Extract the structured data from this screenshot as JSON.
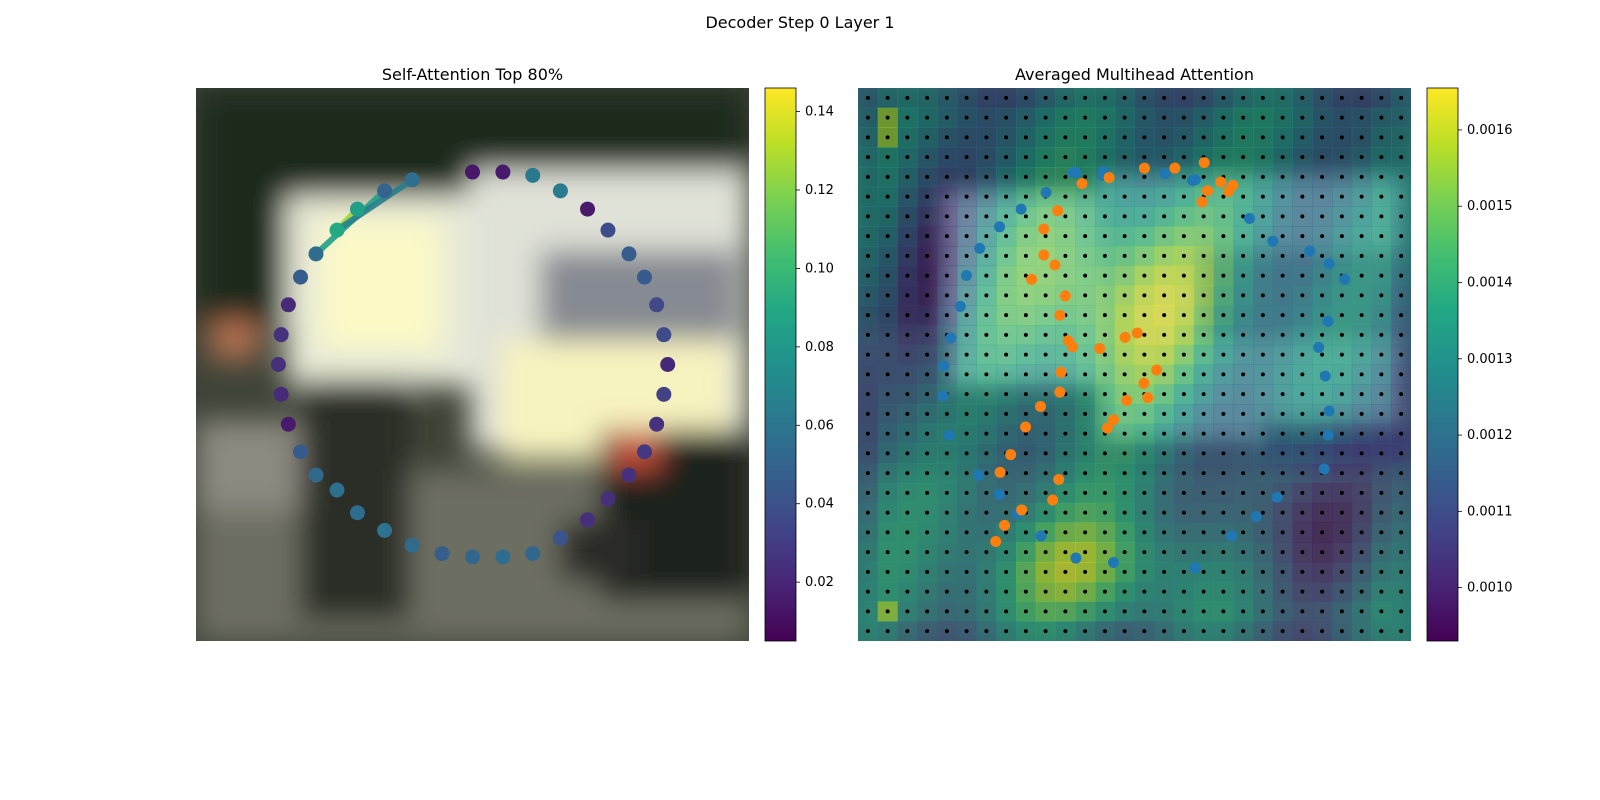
{
  "figure": {
    "title": "Decoder Step 0 Layer 1"
  },
  "chart_data": [
    {
      "type": "scatter",
      "title": "Self-Attention Top 80%",
      "description_of_background": "blurred street photo",
      "colormap": "viridis",
      "colorbar": {
        "ticks": [
          0.02,
          0.04,
          0.06,
          0.08,
          0.1,
          0.12,
          0.14
        ],
        "tick_labels": [
          "0.02",
          "0.04",
          "0.06",
          "0.08",
          "0.10",
          "0.12",
          "0.14"
        ],
        "range": [
          0.005,
          0.146
        ]
      },
      "points": [
        {
          "x": 0.5,
          "y": 0.848,
          "v": 0.014
        },
        {
          "x": 0.555,
          "y": 0.848,
          "v": 0.015
        },
        {
          "x": 0.609,
          "y": 0.842,
          "v": 0.062
        },
        {
          "x": 0.659,
          "y": 0.814,
          "v": 0.063
        },
        {
          "x": 0.708,
          "y": 0.781,
          "v": 0.015
        },
        {
          "x": 0.745,
          "y": 0.743,
          "v": 0.038
        },
        {
          "x": 0.783,
          "y": 0.7,
          "v": 0.046
        },
        {
          "x": 0.811,
          "y": 0.658,
          "v": 0.045
        },
        {
          "x": 0.833,
          "y": 0.608,
          "v": 0.036
        },
        {
          "x": 0.846,
          "y": 0.554,
          "v": 0.037
        },
        {
          "x": 0.853,
          "y": 0.5,
          "v": 0.021
        },
        {
          "x": 0.846,
          "y": 0.446,
          "v": 0.032
        },
        {
          "x": 0.833,
          "y": 0.392,
          "v": 0.025
        },
        {
          "x": 0.811,
          "y": 0.342,
          "v": 0.028
        },
        {
          "x": 0.783,
          "y": 0.3,
          "v": 0.025
        },
        {
          "x": 0.745,
          "y": 0.257,
          "v": 0.024
        },
        {
          "x": 0.708,
          "y": 0.219,
          "v": 0.024
        },
        {
          "x": 0.659,
          "y": 0.186,
          "v": 0.042
        },
        {
          "x": 0.609,
          "y": 0.158,
          "v": 0.052
        },
        {
          "x": 0.555,
          "y": 0.152,
          "v": 0.055
        },
        {
          "x": 0.5,
          "y": 0.152,
          "v": 0.052
        },
        {
          "x": 0.445,
          "y": 0.158,
          "v": 0.047
        },
        {
          "x": 0.391,
          "y": 0.173,
          "v": 0.054
        },
        {
          "x": 0.341,
          "y": 0.2,
          "v": 0.058
        },
        {
          "x": 0.292,
          "y": 0.232,
          "v": 0.055
        },
        {
          "x": 0.255,
          "y": 0.273,
          "v": 0.057
        },
        {
          "x": 0.217,
          "y": 0.3,
          "v": 0.053
        },
        {
          "x": 0.189,
          "y": 0.342,
          "v": 0.045
        },
        {
          "x": 0.167,
          "y": 0.392,
          "v": 0.015
        },
        {
          "x": 0.154,
          "y": 0.446,
          "v": 0.022
        },
        {
          "x": 0.149,
          "y": 0.5,
          "v": 0.024
        },
        {
          "x": 0.154,
          "y": 0.554,
          "v": 0.025
        },
        {
          "x": 0.167,
          "y": 0.608,
          "v": 0.022
        },
        {
          "x": 0.189,
          "y": 0.658,
          "v": 0.047
        },
        {
          "x": 0.217,
          "y": 0.7,
          "v": 0.055
        },
        {
          "x": 0.255,
          "y": 0.743,
          "v": 0.09
        },
        {
          "x": 0.292,
          "y": 0.781,
          "v": 0.085
        },
        {
          "x": 0.341,
          "y": 0.814,
          "v": 0.05
        },
        {
          "x": 0.391,
          "y": 0.834,
          "v": 0.056
        }
      ],
      "edges": [
        {
          "from": [
            0.217,
            0.7
          ],
          "to": [
            0.341,
            0.814
          ],
          "v": 0.085
        },
        {
          "from": [
            0.255,
            0.743
          ],
          "to": [
            0.292,
            0.781
          ],
          "v": 0.125
        },
        {
          "from": [
            0.255,
            0.743
          ],
          "to": [
            0.391,
            0.834
          ],
          "v": 0.065
        }
      ]
    },
    {
      "type": "heatmap",
      "title": "Averaged Multihead Attention",
      "description_of_background": "blurred street photo with attention overlay",
      "colormap": "viridis",
      "colorbar": {
        "ticks": [
          0.001,
          0.0011,
          0.0012,
          0.0013,
          0.0014,
          0.0015,
          0.0016
        ],
        "tick_labels": [
          "0.0010",
          "0.0011",
          "0.0012",
          "0.0013",
          "0.0014",
          "0.0015",
          "0.0016"
        ],
        "range": [
          0.00093,
          0.001655
        ]
      },
      "grid_size": 28,
      "series": [
        {
          "color": "#1f77b4",
          "points": [
            {
              "x": 0.389,
              "y": 0.847
            },
            {
              "x": 0.444,
              "y": 0.849
            },
            {
              "x": 0.61,
              "y": 0.834
            },
            {
              "x": 0.708,
              "y": 0.764
            },
            {
              "x": 0.75,
              "y": 0.723
            },
            {
              "x": 0.817,
              "y": 0.705
            },
            {
              "x": 0.852,
              "y": 0.682
            },
            {
              "x": 0.88,
              "y": 0.654
            },
            {
              "x": 0.85,
              "y": 0.578
            },
            {
              "x": 0.833,
              "y": 0.531
            },
            {
              "x": 0.845,
              "y": 0.479
            },
            {
              "x": 0.852,
              "y": 0.416
            },
            {
              "x": 0.85,
              "y": 0.372
            },
            {
              "x": 0.843,
              "y": 0.311
            },
            {
              "x": 0.758,
              "y": 0.26
            },
            {
              "x": 0.72,
              "y": 0.225
            },
            {
              "x": 0.676,
              "y": 0.19
            },
            {
              "x": 0.61,
              "y": 0.132
            },
            {
              "x": 0.462,
              "y": 0.142
            },
            {
              "x": 0.394,
              "y": 0.15
            },
            {
              "x": 0.331,
              "y": 0.19
            },
            {
              "x": 0.288,
              "y": 0.23
            },
            {
              "x": 0.256,
              "y": 0.265
            },
            {
              "x": 0.218,
              "y": 0.3
            },
            {
              "x": 0.165,
              "y": 0.372
            },
            {
              "x": 0.154,
              "y": 0.443
            },
            {
              "x": 0.155,
              "y": 0.497
            },
            {
              "x": 0.168,
              "y": 0.548
            },
            {
              "x": 0.185,
              "y": 0.605
            },
            {
              "x": 0.196,
              "y": 0.661
            },
            {
              "x": 0.22,
              "y": 0.71
            },
            {
              "x": 0.256,
              "y": 0.749
            },
            {
              "x": 0.295,
              "y": 0.781
            },
            {
              "x": 0.34,
              "y": 0.811
            },
            {
              "x": 0.394,
              "y": 0.847
            },
            {
              "x": 0.443,
              "y": 0.842
            },
            {
              "x": 0.555,
              "y": 0.845
            },
            {
              "x": 0.605,
              "y": 0.833
            }
          ]
        },
        {
          "color": "#ff7f0e",
          "points": [
            {
              "x": 0.518,
              "y": 0.855
            },
            {
              "x": 0.573,
              "y": 0.855
            },
            {
              "x": 0.626,
              "y": 0.865
            },
            {
              "x": 0.656,
              "y": 0.83
            },
            {
              "x": 0.678,
              "y": 0.824
            },
            {
              "x": 0.632,
              "y": 0.814
            },
            {
              "x": 0.622,
              "y": 0.794
            },
            {
              "x": 0.67,
              "y": 0.813
            },
            {
              "x": 0.454,
              "y": 0.838
            },
            {
              "x": 0.405,
              "y": 0.827
            },
            {
              "x": 0.361,
              "y": 0.778
            },
            {
              "x": 0.336,
              "y": 0.745
            },
            {
              "x": 0.314,
              "y": 0.654
            },
            {
              "x": 0.336,
              "y": 0.698
            },
            {
              "x": 0.356,
              "y": 0.68
            },
            {
              "x": 0.365,
              "y": 0.589
            },
            {
              "x": 0.375,
              "y": 0.624
            },
            {
              "x": 0.54,
              "y": 0.49
            },
            {
              "x": 0.486,
              "y": 0.435
            },
            {
              "x": 0.524,
              "y": 0.44
            },
            {
              "x": 0.462,
              "y": 0.4
            },
            {
              "x": 0.451,
              "y": 0.385
            },
            {
              "x": 0.363,
              "y": 0.292
            },
            {
              "x": 0.352,
              "y": 0.255
            },
            {
              "x": 0.296,
              "y": 0.237
            },
            {
              "x": 0.265,
              "y": 0.209
            },
            {
              "x": 0.249,
              "y": 0.18
            },
            {
              "x": 0.257,
              "y": 0.305
            },
            {
              "x": 0.276,
              "y": 0.337
            },
            {
              "x": 0.303,
              "y": 0.387
            },
            {
              "x": 0.33,
              "y": 0.424
            },
            {
              "x": 0.365,
              "y": 0.45
            },
            {
              "x": 0.367,
              "y": 0.486
            },
            {
              "x": 0.38,
              "y": 0.543
            },
            {
              "x": 0.388,
              "y": 0.532
            },
            {
              "x": 0.437,
              "y": 0.529
            },
            {
              "x": 0.505,
              "y": 0.557
            },
            {
              "x": 0.483,
              "y": 0.549
            },
            {
              "x": 0.517,
              "y": 0.466
            }
          ]
        }
      ]
    }
  ]
}
